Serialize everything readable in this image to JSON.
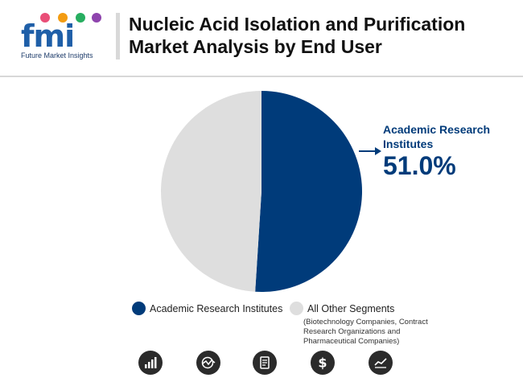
{
  "header": {
    "logo_letters": "fmi",
    "logo_subtitle": "Future Market Insights",
    "title": "Nucleic Acid Isolation and Purification Market Analysis by End User"
  },
  "chart_data": {
    "type": "pie",
    "slices": [
      {
        "label": "Academic Research Institutes",
        "value": 51.0,
        "color": "#003b7a"
      },
      {
        "label": "All Other Segments",
        "value": 49.0,
        "color": "#dedede"
      }
    ],
    "callout": {
      "label": "Academic Research Institutes",
      "value": "51.0%"
    },
    "legend": [
      {
        "label": "Academic Research Institutes",
        "color": "#003b7a"
      },
      {
        "label": "All Other Segments",
        "note": "(Biotechnology Companies, Contract Research Organizations and Pharmaceutical Companies)",
        "color": "#dedede"
      }
    ]
  },
  "footer_icons": [
    "bar-chart-icon",
    "globe-chart-icon",
    "report-icon",
    "dollar-icon",
    "trend-line-icon"
  ],
  "colors": {
    "primary": "#003b7a",
    "secondary": "#dedede",
    "icon_bg": "#2b2b2b"
  }
}
